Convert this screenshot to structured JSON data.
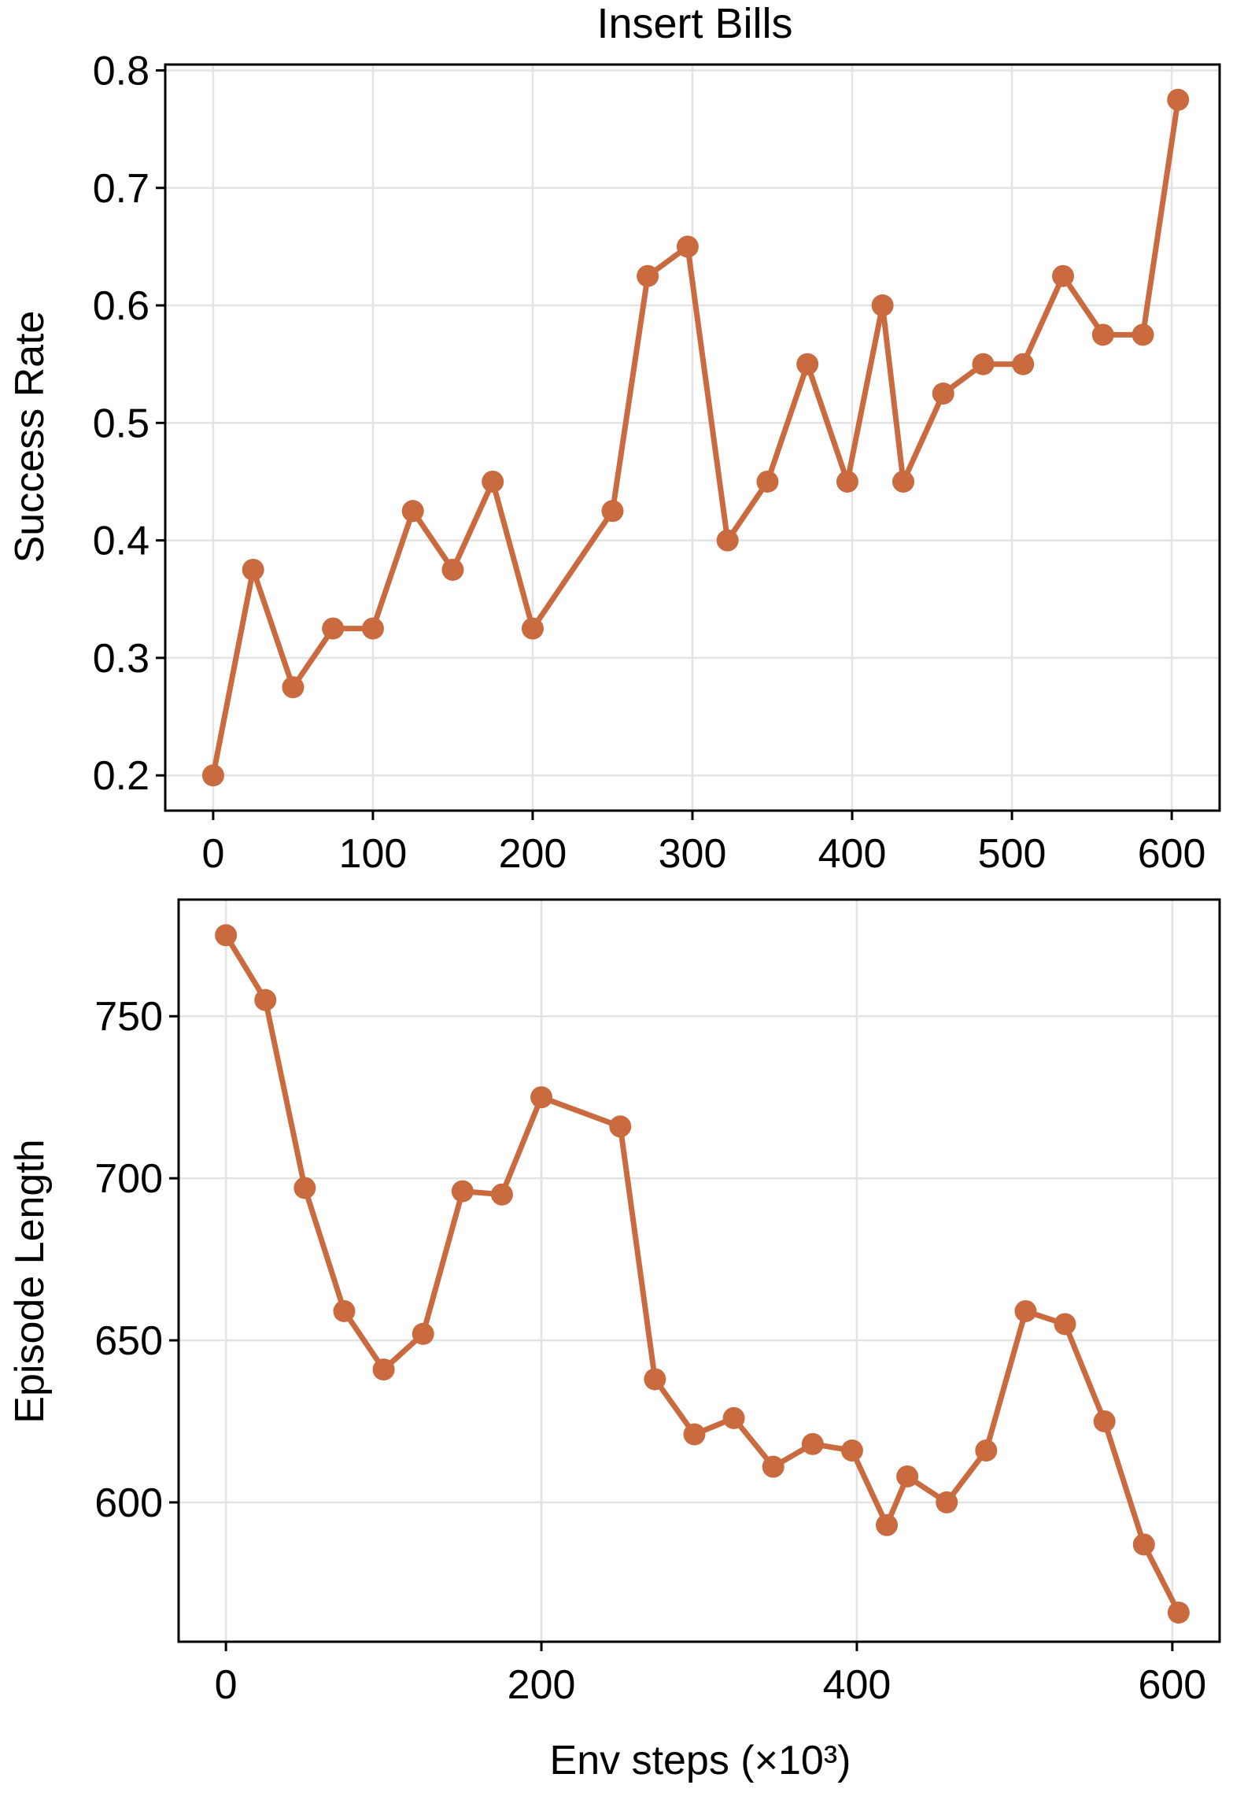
{
  "colors": {
    "series": "#c96a3f"
  },
  "chart_data": [
    {
      "type": "line",
      "title": "Insert Bills",
      "xlabel": "",
      "ylabel": "Success Rate",
      "xlim": [
        -30,
        630
      ],
      "ylim": [
        0.17,
        0.805
      ],
      "xticks": [
        0,
        100,
        200,
        300,
        400,
        500,
        600
      ],
      "xtick_labels": [
        "0",
        "100",
        "200",
        "300",
        "400",
        "500",
        "600"
      ],
      "yticks": [
        0.2,
        0.3,
        0.4,
        0.5,
        0.6,
        0.7,
        0.8
      ],
      "ytick_labels": [
        "0.2",
        "0.3",
        "0.4",
        "0.5",
        "0.6",
        "0.7",
        "0.8"
      ],
      "grid": true,
      "series": [
        {
          "x": [
            0,
            25,
            50,
            75,
            100,
            125,
            150,
            175,
            200,
            250,
            272,
            297,
            322,
            347,
            372,
            397,
            419,
            432,
            457,
            482,
            507,
            532,
            557,
            582,
            604
          ],
          "values": [
            0.2,
            0.375,
            0.275,
            0.325,
            0.325,
            0.425,
            0.375,
            0.45,
            0.325,
            0.425,
            0.625,
            0.65,
            0.4,
            0.45,
            0.55,
            0.45,
            0.6,
            0.45,
            0.525,
            0.55,
            0.55,
            0.625,
            0.575,
            0.575,
            0.775
          ]
        }
      ]
    },
    {
      "type": "line",
      "title": "",
      "xlabel": "Env steps (×10³)",
      "ylabel": "Episode Length",
      "xlim": [
        -30,
        630
      ],
      "ylim": [
        557,
        786
      ],
      "xticks": [
        0,
        200,
        400,
        600
      ],
      "xtick_labels": [
        "0",
        "200",
        "400",
        "600"
      ],
      "yticks": [
        600,
        650,
        700,
        750
      ],
      "ytick_labels": [
        "600",
        "650",
        "700",
        "750"
      ],
      "grid": true,
      "series": [
        {
          "x": [
            0,
            25,
            50,
            75,
            100,
            125,
            150,
            175,
            200,
            250,
            272,
            297,
            322,
            347,
            372,
            397,
            419,
            432,
            457,
            482,
            507,
            532,
            557,
            582,
            604
          ],
          "values": [
            775,
            755,
            697,
            659,
            641,
            652,
            696,
            695,
            725,
            716,
            638,
            621,
            626,
            611,
            618,
            616,
            593,
            608,
            600,
            616,
            659,
            655,
            625,
            587,
            566
          ]
        }
      ]
    }
  ]
}
